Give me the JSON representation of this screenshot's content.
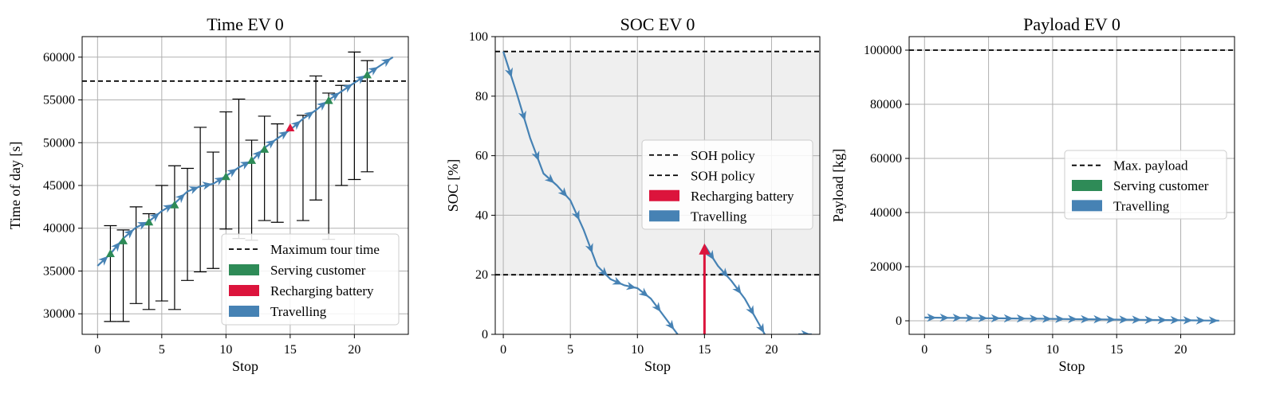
{
  "colors": {
    "travel": "#4682b4",
    "serve": "#2e8b57",
    "recharge": "#dc143c",
    "grid": "#b0b0b0",
    "shade": "#efefef"
  },
  "chart_data": [
    {
      "type": "line",
      "title": "Time EV 0",
      "xlabel": "Stop",
      "ylabel": "Time of day [s]",
      "xlim": [
        -1.2,
        24.2
      ],
      "ylim": [
        27600,
        62400
      ],
      "xticks": [
        0,
        5,
        10,
        15,
        20
      ],
      "yticks": [
        30000,
        35000,
        40000,
        45000,
        50000,
        55000,
        60000
      ],
      "grid": true,
      "hline": {
        "y": 57200,
        "label": "Maximum tour time"
      },
      "legend": {
        "position": "lower right",
        "entries": [
          {
            "kind": "dash",
            "label": "Maximum tour time"
          },
          {
            "kind": "patch",
            "color": "#2e8b57",
            "label": "Serving customer"
          },
          {
            "kind": "patch",
            "color": "#dc143c",
            "label": "Recharging battery"
          },
          {
            "kind": "patch",
            "color": "#4682b4",
            "label": "Travelling"
          }
        ]
      },
      "travel_path": {
        "x": [
          0,
          1,
          2,
          3,
          4,
          5,
          6,
          7,
          8,
          9,
          10,
          11,
          12,
          13,
          14,
          15,
          16,
          17,
          18,
          19,
          20,
          21,
          22,
          23
        ],
        "y": [
          35600,
          37000,
          38800,
          40100,
          40800,
          42000,
          42900,
          44300,
          44900,
          45200,
          46100,
          47100,
          47900,
          49400,
          50500,
          51500,
          52800,
          53800,
          55000,
          56000,
          57000,
          58000,
          59000,
          60000
        ]
      },
      "serve_markers": {
        "x": [
          1,
          2,
          4,
          6,
          10,
          12,
          13,
          18,
          21
        ],
        "y": [
          37000,
          38500,
          40700,
          42700,
          46000,
          47900,
          49200,
          54900,
          57900
        ]
      },
      "recharge_markers": {
        "x": [
          15
        ],
        "y": [
          51700
        ]
      },
      "time_windows": [
        {
          "x": 1,
          "low": 29100,
          "high": 40300
        },
        {
          "x": 2,
          "low": 29100,
          "high": 39800
        },
        {
          "x": 3,
          "low": 31200,
          "high": 42500
        },
        {
          "x": 4,
          "low": 30500,
          "high": 41700
        },
        {
          "x": 5,
          "low": 31500,
          "high": 45000
        },
        {
          "x": 6,
          "low": 30500,
          "high": 47300
        },
        {
          "x": 7,
          "low": 33900,
          "high": 47000
        },
        {
          "x": 8,
          "low": 34900,
          "high": 51800
        },
        {
          "x": 9,
          "low": 35300,
          "high": 48900
        },
        {
          "x": 10,
          "low": 39900,
          "high": 53600
        },
        {
          "x": 11,
          "low": 38800,
          "high": 55100
        },
        {
          "x": 12,
          "low": 38600,
          "high": 50300
        },
        {
          "x": 13,
          "low": 40900,
          "high": 53100
        },
        {
          "x": 14,
          "low": 40700,
          "high": 52200
        },
        {
          "x": 16,
          "low": 40900,
          "high": 53200
        },
        {
          "x": 17,
          "low": 43300,
          "high": 57800
        },
        {
          "x": 18,
          "low": 38700,
          "high": 55800
        },
        {
          "x": 19,
          "low": 45000,
          "high": 56700
        },
        {
          "x": 20,
          "low": 45700,
          "high": 60600
        },
        {
          "x": 21,
          "low": 46600,
          "high": 59600
        }
      ]
    },
    {
      "type": "line",
      "title": "SOC EV 0",
      "xlabel": "Stop",
      "ylabel": "SOC [%]",
      "xlim": [
        -0.6,
        23.6
      ],
      "ylim": [
        0,
        100
      ],
      "xticks": [
        0,
        5,
        10,
        15,
        20
      ],
      "yticks": [
        0,
        20,
        40,
        60,
        80,
        100
      ],
      "grid": true,
      "shaded_band": [
        20,
        95
      ],
      "hlines": [
        {
          "y": 95,
          "label": "SOH policy"
        },
        {
          "y": 20,
          "label": "SOH policy"
        }
      ],
      "legend": {
        "position": "center right",
        "entries": [
          {
            "kind": "dash",
            "label": "SOH policy"
          },
          {
            "kind": "dash",
            "label": "SOH policy"
          },
          {
            "kind": "patch",
            "color": "#dc143c",
            "label": "Recharging battery"
          },
          {
            "kind": "patch",
            "color": "#4682b4",
            "label": "Travelling"
          }
        ]
      },
      "travel_segments": [
        {
          "x": [
            0,
            1,
            2,
            3,
            4,
            5,
            6,
            7,
            8,
            9,
            10,
            11,
            12,
            13
          ],
          "y": [
            95,
            81,
            66,
            54,
            50,
            45,
            35,
            23,
            18.5,
            16.5,
            15.5,
            12,
            6,
            0
          ]
        },
        {
          "x": [
            15,
            16,
            17,
            18,
            19,
            19.5
          ],
          "y": [
            30,
            23,
            18,
            12,
            4,
            0
          ]
        },
        {
          "x": [
            22,
            23
          ],
          "y": [
            0,
            0
          ]
        }
      ],
      "recharge": {
        "x": 15,
        "from": 0,
        "to": 30
      }
    },
    {
      "type": "line",
      "title": "Payload EV 0",
      "xlabel": "Stop",
      "ylabel": "Payload [kg]",
      "xlim": [
        -1.2,
        24.2
      ],
      "ylim": [
        -5000,
        105000
      ],
      "xticks": [
        0,
        5,
        10,
        15,
        20
      ],
      "yticks": [
        0,
        20000,
        40000,
        60000,
        80000,
        100000
      ],
      "grid": true,
      "hline": {
        "y": 100000,
        "label": "Max. payload"
      },
      "legend": {
        "position": "center right",
        "entries": [
          {
            "kind": "dash",
            "label": "Max. payload"
          },
          {
            "kind": "patch",
            "color": "#2e8b57",
            "label": "Serving customer"
          },
          {
            "kind": "patch",
            "color": "#4682b4",
            "label": "Travelling"
          }
        ]
      },
      "travel_path": {
        "x": [
          0,
          1,
          2,
          3,
          4,
          5,
          6,
          7,
          8,
          9,
          10,
          11,
          12,
          13,
          14,
          15,
          16,
          17,
          18,
          19,
          20,
          21,
          22,
          23
        ],
        "y": [
          1200,
          1150,
          1100,
          1050,
          1000,
          950,
          900,
          850,
          800,
          750,
          700,
          650,
          600,
          550,
          500,
          450,
          400,
          350,
          300,
          250,
          200,
          150,
          100,
          50
        ]
      }
    }
  ]
}
